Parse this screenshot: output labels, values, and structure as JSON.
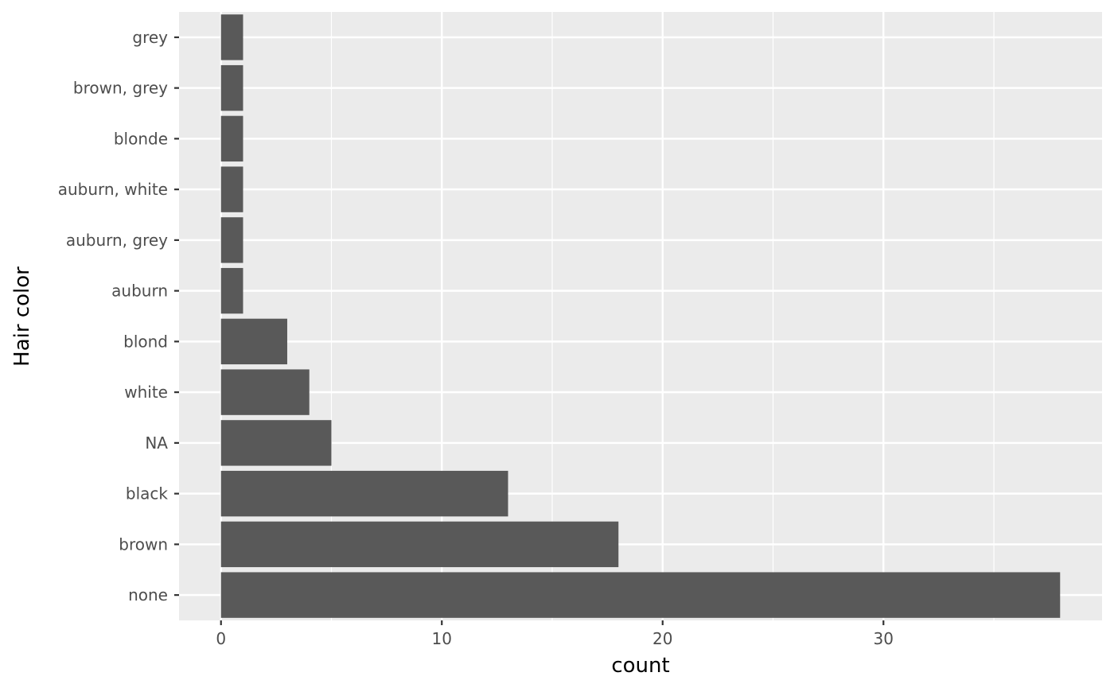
{
  "chart_data": {
    "type": "bar",
    "orientation": "horizontal",
    "title": "",
    "xlabel": "count",
    "ylabel": "Hair color",
    "categories": [
      "none",
      "brown",
      "black",
      "NA",
      "white",
      "blond",
      "auburn",
      "auburn, grey",
      "auburn, white",
      "blonde",
      "brown, grey",
      "grey"
    ],
    "values": [
      38,
      18,
      13,
      5,
      4,
      3,
      1,
      1,
      1,
      1,
      1,
      1
    ],
    "x_ticks": [
      0,
      10,
      20,
      30
    ],
    "xlim": [
      -1.9,
      39.9
    ],
    "grid": true,
    "legend": "none",
    "colors": {
      "panel_background": "#ebebeb",
      "grid_line": "#ffffff",
      "bar_fill": "#595959",
      "tick_text": "#4d4d4d",
      "tick_mark": "#333333",
      "axis_title": "#000000"
    }
  }
}
